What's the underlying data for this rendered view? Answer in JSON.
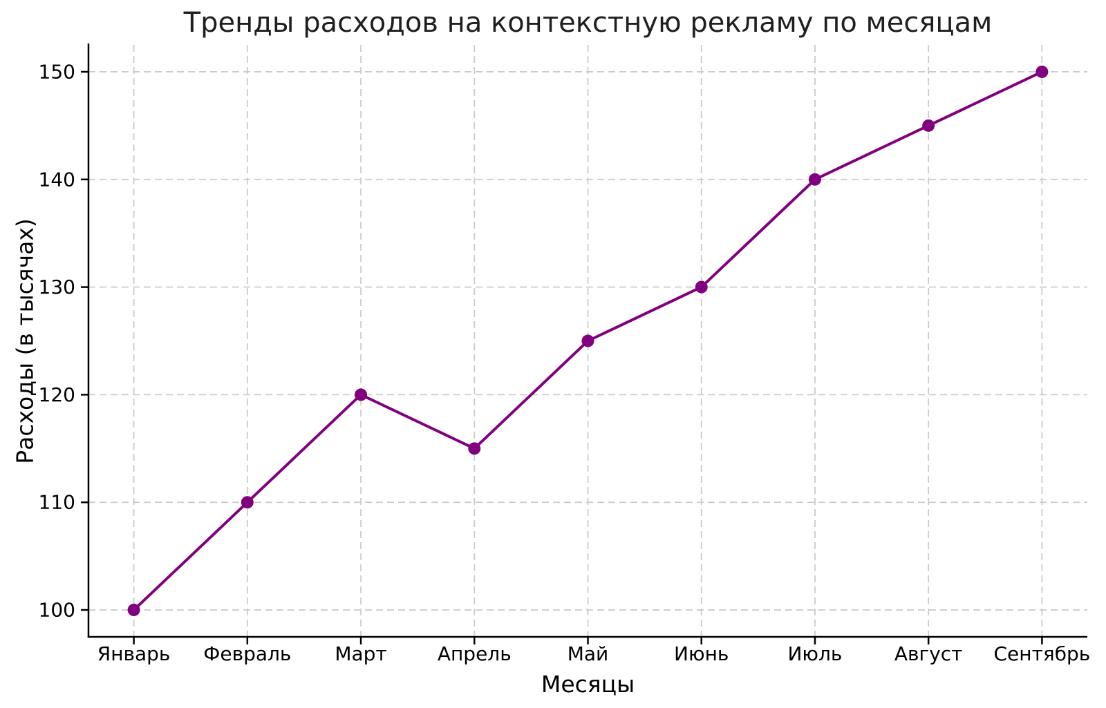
{
  "chart_data": {
    "type": "line",
    "title": "Тренды расходов на контекстную рекламу по месяцам",
    "xlabel": "Месяцы",
    "ylabel": "Расходы (в тысячах)",
    "categories": [
      "Январь",
      "Февраль",
      "Март",
      "Апрель",
      "Май",
      "Июнь",
      "Июль",
      "Август",
      "Сентябрь"
    ],
    "values": [
      100,
      110,
      120,
      115,
      125,
      130,
      140,
      145,
      150
    ],
    "yticks": [
      100,
      110,
      120,
      130,
      140,
      150
    ],
    "ylim": [
      97.5,
      152.5
    ],
    "line_color": "#800080",
    "marker": "circle",
    "grid": "dashed",
    "grid_color": "#cbcbcb",
    "axis_color": "#000000",
    "background": "#ffffff",
    "legend": "none"
  }
}
